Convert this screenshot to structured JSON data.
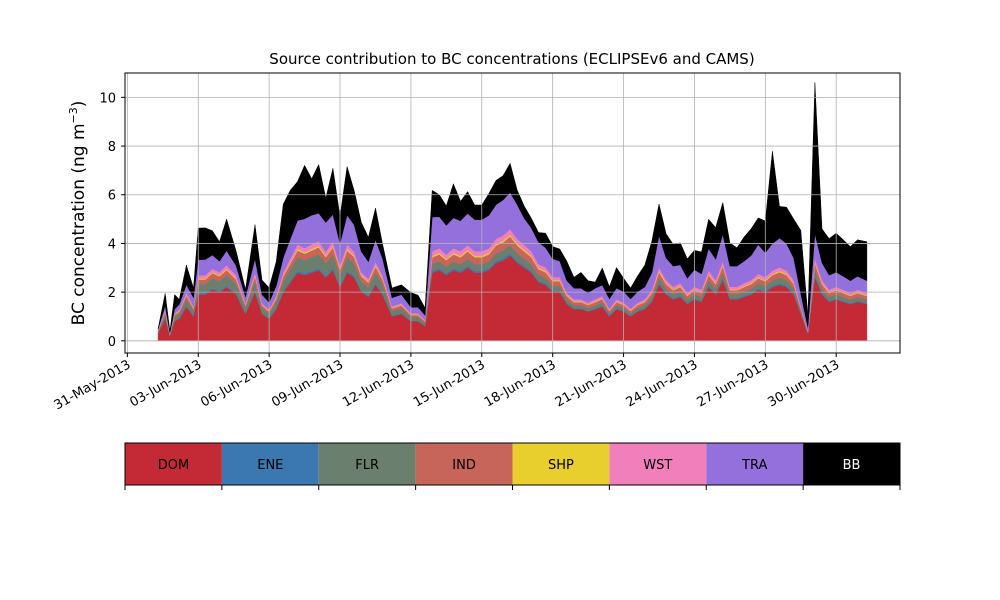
{
  "chart_data": {
    "type": "area",
    "stacked": true,
    "title": "Source contribution to BC concentrations (ECLIPSEv6 and CAMS)",
    "ylabel": "BC concentration (ng m",
    "ylabel_sup": "−3",
    "ylabel_close": ")",
    "xlabel": "",
    "ylim": [
      -0.5,
      11
    ],
    "xlim": [
      -0.1,
      32.7
    ],
    "yticks": [
      0,
      2,
      4,
      6,
      8,
      10
    ],
    "grid": true,
    "x_date_origin": "31-May-2013",
    "xticks": [
      {
        "day": 0,
        "label": "31-May-2013"
      },
      {
        "day": 3,
        "label": "03-Jun-2013"
      },
      {
        "day": 6,
        "label": "06-Jun-2013"
      },
      {
        "day": 9,
        "label": "09-Jun-2013"
      },
      {
        "day": 12,
        "label": "12-Jun-2013"
      },
      {
        "day": 15,
        "label": "15-Jun-2013"
      },
      {
        "day": 18,
        "label": "18-Jun-2013"
      },
      {
        "day": 21,
        "label": "21-Jun-2013"
      },
      {
        "day": 24,
        "label": "24-Jun-2013"
      },
      {
        "day": 27,
        "label": "27-Jun-2013"
      },
      {
        "day": 30,
        "label": "30-Jun-2013"
      }
    ],
    "x": [
      1.3,
      1.6,
      1.8,
      2.0,
      2.2,
      2.5,
      2.8,
      3.0,
      3.3,
      3.6,
      3.9,
      4.2,
      4.6,
      5.0,
      5.4,
      5.7,
      6.0,
      6.3,
      6.6,
      6.9,
      7.2,
      7.5,
      7.8,
      8.1,
      8.4,
      8.7,
      9.0,
      9.3,
      9.6,
      9.9,
      10.2,
      10.5,
      10.8,
      11.2,
      11.6,
      12.0,
      12.3,
      12.6,
      12.9,
      13.2,
      13.5,
      13.8,
      14.1,
      14.4,
      14.7,
      15.0,
      15.3,
      15.6,
      15.9,
      16.2,
      16.5,
      16.8,
      17.1,
      17.4,
      17.7,
      18.0,
      18.3,
      18.6,
      18.9,
      19.2,
      19.5,
      19.8,
      20.1,
      20.4,
      20.7,
      21.0,
      21.3,
      21.6,
      21.9,
      22.2,
      22.5,
      22.8,
      23.1,
      23.4,
      23.7,
      24.0,
      24.3,
      24.6,
      24.9,
      25.2,
      25.5,
      25.8,
      26.1,
      26.4,
      26.7,
      27.0,
      27.3,
      27.6,
      27.9,
      28.2,
      28.5,
      28.8,
      29.1,
      29.4,
      29.7,
      30.0,
      30.3,
      30.6,
      30.9,
      31.3
    ],
    "series": [
      {
        "name": "DOM",
        "color": "#c42a35",
        "values": [
          0.3,
          0.9,
          0.2,
          0.8,
          0.9,
          1.4,
          1.0,
          1.9,
          1.9,
          2.1,
          2.0,
          2.2,
          1.9,
          1.1,
          2.0,
          1.1,
          0.9,
          1.3,
          2.0,
          2.4,
          2.8,
          2.7,
          2.8,
          2.9,
          2.6,
          2.9,
          2.2,
          2.8,
          2.6,
          2.0,
          1.8,
          2.3,
          1.9,
          1.0,
          1.1,
          0.8,
          0.8,
          0.6,
          2.8,
          2.9,
          2.7,
          2.9,
          2.8,
          3.0,
          2.8,
          2.8,
          2.9,
          3.2,
          3.3,
          3.5,
          3.2,
          3.0,
          2.8,
          2.4,
          2.3,
          2.0,
          2.0,
          1.5,
          1.3,
          1.3,
          1.2,
          1.3,
          1.4,
          1.0,
          1.3,
          1.2,
          1.0,
          1.2,
          1.3,
          1.6,
          2.3,
          1.9,
          1.7,
          1.8,
          1.5,
          1.7,
          1.6,
          2.2,
          1.9,
          2.5,
          1.7,
          1.7,
          1.8,
          1.9,
          2.1,
          2.0,
          2.2,
          2.3,
          2.2,
          1.9,
          1.1,
          0.3,
          2.6,
          1.9,
          1.6,
          1.7,
          1.6,
          1.5,
          1.6,
          1.5
        ]
      },
      {
        "name": "ENE",
        "color": "#3b78b0",
        "values": [
          0.02,
          0.03,
          0.01,
          0.03,
          0.03,
          0.04,
          0.03,
          0.05,
          0.05,
          0.05,
          0.05,
          0.05,
          0.05,
          0.03,
          0.05,
          0.03,
          0.03,
          0.04,
          0.05,
          0.06,
          0.07,
          0.07,
          0.07,
          0.07,
          0.06,
          0.07,
          0.05,
          0.07,
          0.06,
          0.05,
          0.05,
          0.06,
          0.05,
          0.03,
          0.03,
          0.02,
          0.02,
          0.02,
          0.07,
          0.07,
          0.07,
          0.07,
          0.07,
          0.07,
          0.07,
          0.07,
          0.07,
          0.08,
          0.08,
          0.09,
          0.08,
          0.07,
          0.07,
          0.06,
          0.06,
          0.05,
          0.05,
          0.04,
          0.03,
          0.03,
          0.03,
          0.03,
          0.04,
          0.03,
          0.03,
          0.03,
          0.03,
          0.03,
          0.03,
          0.04,
          0.06,
          0.05,
          0.04,
          0.05,
          0.04,
          0.04,
          0.04,
          0.06,
          0.05,
          0.06,
          0.04,
          0.04,
          0.05,
          0.05,
          0.05,
          0.05,
          0.06,
          0.06,
          0.06,
          0.05,
          0.03,
          0.01,
          0.07,
          0.05,
          0.04,
          0.04,
          0.04,
          0.04,
          0.04,
          0.04
        ]
      },
      {
        "name": "FLR",
        "color": "#6b7f6e",
        "values": [
          0.06,
          0.18,
          0.04,
          0.16,
          0.18,
          0.28,
          0.2,
          0.38,
          0.38,
          0.42,
          0.4,
          0.44,
          0.38,
          0.22,
          0.4,
          0.22,
          0.18,
          0.26,
          0.4,
          0.48,
          0.56,
          0.54,
          0.56,
          0.58,
          0.52,
          0.58,
          0.44,
          0.56,
          0.52,
          0.4,
          0.36,
          0.46,
          0.38,
          0.2,
          0.22,
          0.16,
          0.16,
          0.12,
          0.28,
          0.29,
          0.27,
          0.29,
          0.28,
          0.3,
          0.28,
          0.28,
          0.29,
          0.32,
          0.33,
          0.35,
          0.32,
          0.3,
          0.28,
          0.24,
          0.23,
          0.2,
          0.2,
          0.15,
          0.13,
          0.13,
          0.12,
          0.13,
          0.14,
          0.1,
          0.13,
          0.12,
          0.1,
          0.12,
          0.13,
          0.16,
          0.23,
          0.19,
          0.17,
          0.18,
          0.15,
          0.17,
          0.16,
          0.22,
          0.19,
          0.25,
          0.17,
          0.17,
          0.18,
          0.19,
          0.21,
          0.2,
          0.22,
          0.23,
          0.22,
          0.19,
          0.11,
          0.03,
          0.26,
          0.19,
          0.16,
          0.17,
          0.16,
          0.15,
          0.16,
          0.15
        ]
      },
      {
        "name": "IND",
        "color": "#c8655a",
        "values": [
          0.03,
          0.09,
          0.02,
          0.08,
          0.09,
          0.14,
          0.1,
          0.19,
          0.19,
          0.21,
          0.2,
          0.22,
          0.19,
          0.11,
          0.2,
          0.11,
          0.09,
          0.13,
          0.2,
          0.24,
          0.28,
          0.27,
          0.28,
          0.29,
          0.26,
          0.29,
          0.22,
          0.28,
          0.26,
          0.2,
          0.18,
          0.23,
          0.19,
          0.1,
          0.11,
          0.08,
          0.08,
          0.06,
          0.28,
          0.29,
          0.27,
          0.29,
          0.28,
          0.3,
          0.28,
          0.28,
          0.29,
          0.32,
          0.33,
          0.35,
          0.32,
          0.3,
          0.28,
          0.24,
          0.23,
          0.2,
          0.2,
          0.15,
          0.13,
          0.13,
          0.12,
          0.13,
          0.14,
          0.1,
          0.13,
          0.12,
          0.1,
          0.12,
          0.13,
          0.16,
          0.23,
          0.19,
          0.17,
          0.18,
          0.15,
          0.17,
          0.16,
          0.22,
          0.19,
          0.25,
          0.17,
          0.17,
          0.18,
          0.19,
          0.21,
          0.2,
          0.22,
          0.23,
          0.22,
          0.19,
          0.11,
          0.03,
          0.26,
          0.19,
          0.16,
          0.17,
          0.16,
          0.15,
          0.16,
          0.15
        ]
      },
      {
        "name": "SHP",
        "color": "#e8cf2e",
        "values": [
          0.01,
          0.02,
          0.01,
          0.02,
          0.02,
          0.03,
          0.02,
          0.04,
          0.04,
          0.04,
          0.04,
          0.04,
          0.04,
          0.02,
          0.04,
          0.02,
          0.02,
          0.03,
          0.04,
          0.05,
          0.06,
          0.05,
          0.06,
          0.06,
          0.05,
          0.06,
          0.04,
          0.06,
          0.05,
          0.04,
          0.04,
          0.05,
          0.04,
          0.02,
          0.02,
          0.02,
          0.02,
          0.01,
          0.06,
          0.06,
          0.05,
          0.06,
          0.06,
          0.06,
          0.06,
          0.06,
          0.06,
          0.06,
          0.07,
          0.07,
          0.06,
          0.06,
          0.06,
          0.05,
          0.05,
          0.04,
          0.04,
          0.03,
          0.03,
          0.03,
          0.02,
          0.03,
          0.03,
          0.02,
          0.03,
          0.02,
          0.02,
          0.02,
          0.03,
          0.03,
          0.05,
          0.04,
          0.03,
          0.04,
          0.03,
          0.03,
          0.03,
          0.04,
          0.04,
          0.05,
          0.03,
          0.03,
          0.04,
          0.04,
          0.04,
          0.04,
          0.04,
          0.05,
          0.04,
          0.04,
          0.02,
          0.01,
          0.05,
          0.04,
          0.03,
          0.03,
          0.03,
          0.03,
          0.03,
          0.03
        ]
      },
      {
        "name": "WST",
        "color": "#f07fbc",
        "values": [
          0.02,
          0.06,
          0.01,
          0.05,
          0.06,
          0.09,
          0.07,
          0.13,
          0.13,
          0.14,
          0.13,
          0.15,
          0.13,
          0.07,
          0.13,
          0.07,
          0.06,
          0.09,
          0.13,
          0.16,
          0.19,
          0.18,
          0.19,
          0.19,
          0.17,
          0.19,
          0.15,
          0.19,
          0.17,
          0.13,
          0.12,
          0.15,
          0.13,
          0.07,
          0.07,
          0.05,
          0.05,
          0.04,
          0.19,
          0.19,
          0.18,
          0.19,
          0.19,
          0.2,
          0.19,
          0.19,
          0.19,
          0.21,
          0.22,
          0.23,
          0.21,
          0.2,
          0.19,
          0.16,
          0.15,
          0.13,
          0.13,
          0.1,
          0.09,
          0.09,
          0.08,
          0.09,
          0.09,
          0.07,
          0.09,
          0.08,
          0.07,
          0.08,
          0.09,
          0.11,
          0.15,
          0.13,
          0.11,
          0.12,
          0.1,
          0.11,
          0.11,
          0.15,
          0.13,
          0.17,
          0.11,
          0.11,
          0.12,
          0.13,
          0.14,
          0.13,
          0.15,
          0.15,
          0.15,
          0.13,
          0.07,
          0.02,
          0.17,
          0.13,
          0.11,
          0.11,
          0.11,
          0.1,
          0.11,
          0.1
        ]
      },
      {
        "name": "TRA",
        "color": "#9370db",
        "values": [
          0.05,
          0.17,
          0.05,
          0.16,
          0.22,
          0.33,
          0.35,
          0.64,
          0.65,
          0.56,
          0.45,
          0.6,
          0.4,
          0.26,
          0.55,
          0.35,
          0.3,
          0.4,
          0.6,
          0.8,
          0.98,
          1.2,
          1.2,
          1.15,
          1.2,
          1.1,
          0.9,
          1.2,
          1.1,
          0.85,
          0.7,
          0.9,
          0.7,
          0.35,
          0.35,
          0.25,
          0.25,
          0.2,
          1.4,
          1.3,
          1.2,
          1.25,
          1.25,
          1.3,
          1.3,
          1.3,
          1.35,
          1.4,
          1.45,
          1.5,
          1.4,
          1.1,
          0.95,
          0.9,
          0.8,
          0.75,
          0.65,
          0.5,
          0.45,
          0.45,
          0.4,
          0.45,
          0.45,
          0.4,
          0.45,
          0.45,
          0.4,
          0.45,
          0.5,
          0.7,
          1.3,
          0.9,
          0.85,
          0.75,
          0.6,
          0.7,
          0.65,
          0.9,
          0.85,
          1.1,
          0.85,
          0.85,
          0.9,
          1.0,
          1.2,
          1.0,
          1.1,
          1.2,
          1.1,
          0.9,
          0.5,
          0.15,
          1.0,
          0.7,
          0.6,
          0.6,
          0.55,
          0.5,
          0.55,
          0.5
        ]
      },
      {
        "name": "BB",
        "color": "#000000",
        "values": [
          0.01,
          0.5,
          0.05,
          0.6,
          0.2,
          0.8,
          0.4,
          1.3,
          1.3,
          1.0,
          0.8,
          1.3,
          0.6,
          0.3,
          1.4,
          0.6,
          0.6,
          1.0,
          2.2,
          2.0,
          1.6,
          2.2,
          1.5,
          2.0,
          1.0,
          1.9,
          1.1,
          2.0,
          1.4,
          1.2,
          1.0,
          1.3,
          0.6,
          0.4,
          0.4,
          0.6,
          0.5,
          0.3,
          1.1,
          0.9,
          0.8,
          1.4,
          0.8,
          0.9,
          0.6,
          0.6,
          0.9,
          1.0,
          1.0,
          1.2,
          0.6,
          0.5,
          0.4,
          0.4,
          0.6,
          0.5,
          0.5,
          0.8,
          0.45,
          0.65,
          0.5,
          0.25,
          0.7,
          0.5,
          0.85,
          0.55,
          0.45,
          0.65,
          0.9,
          1.3,
          1.3,
          1.0,
          0.9,
          0.9,
          0.8,
          0.8,
          0.9,
          1.2,
          1.3,
          1.3,
          0.95,
          0.75,
          1.0,
          1.1,
          1.1,
          1.3,
          3.8,
          1.3,
          1.5,
          1.6,
          2.6,
          0.5,
          6.2,
          1.4,
          1.5,
          1.6,
          1.5,
          1.4,
          1.5,
          1.6
        ]
      }
    ],
    "legend_position": "below"
  }
}
